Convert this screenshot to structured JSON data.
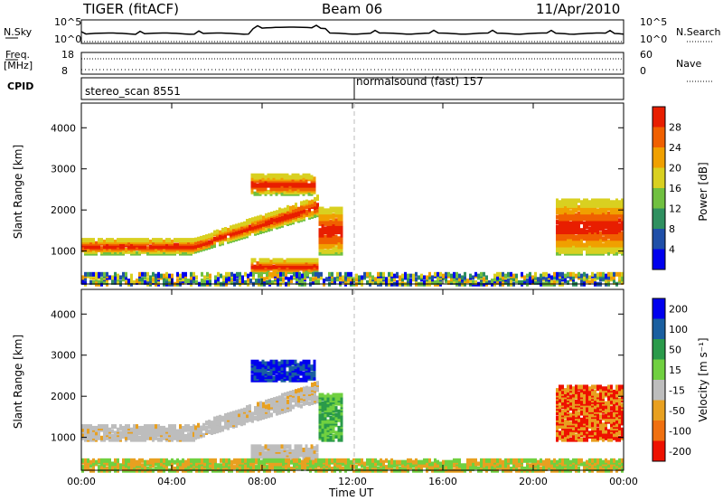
{
  "header": {
    "radar": "TIGER (fitACF)",
    "beam": "Beam 06",
    "date": "11/Apr/2010"
  },
  "top_panels": {
    "nsky_label": "N.Sky",
    "nsearch_label": "N.Search",
    "nsky_ticks": [
      "10^5",
      "10^0"
    ],
    "freq_label_1": "Freq.",
    "freq_label_2": "[MHz]",
    "freq_ticks": [
      "18",
      "8"
    ],
    "nave_ticks": [
      "60",
      "0"
    ],
    "nave_label": "Nave",
    "cpid_label": "CPID",
    "cpid_1": "stereo_scan 8551",
    "cpid_2": "normalsound (fast) 157"
  },
  "colors": {
    "power": [
      "#0000ee",
      "#1f4fa8",
      "#2f9060",
      "#70c040",
      "#d9d020",
      "#f0a000",
      "#f06000",
      "#e81e00"
    ],
    "velocity": [
      "#0000ee",
      "#1a5fa0",
      "#2a9a4a",
      "#70d040",
      "#bdbdbd",
      "#e8a020",
      "#f07010",
      "#ee1100"
    ]
  },
  "chart_data": [
    {
      "type": "heatmap",
      "name": "power",
      "ylabel": "Slant Range [km]",
      "yticks": [
        "1000",
        "2000",
        "3000",
        "4000"
      ],
      "ylim": [
        200,
        4600
      ],
      "colorbar_label": "Power [dB]",
      "colorbar_ticks": [
        "4",
        "8",
        "12",
        "16",
        "20",
        "24",
        "28"
      ],
      "xlim_hours": [
        0,
        24
      ],
      "features": [
        {
          "t0": 0.0,
          "t1": 5.0,
          "r0": 1000,
          "r1": 1350,
          "level": "high"
        },
        {
          "t0": 5.0,
          "t1": 10.5,
          "r0": 1200,
          "r1": 2200,
          "level": "high"
        },
        {
          "t0": 7.5,
          "t1": 10.3,
          "r0": 2450,
          "r1": 2900,
          "level": "high"
        },
        {
          "t0": 7.5,
          "t1": 10.5,
          "r0": 550,
          "r1": 850,
          "level": "high"
        },
        {
          "t0": 10.5,
          "t1": 11.5,
          "r0": 1000,
          "r1": 2100,
          "level": "high"
        },
        {
          "t0": 21.0,
          "t1": 24.0,
          "r0": 1000,
          "r1": 2300,
          "level": "high"
        },
        {
          "t0": 0.0,
          "t1": 24.0,
          "r0": 250,
          "r1": 500,
          "level": "low"
        }
      ]
    },
    {
      "type": "heatmap",
      "name": "velocity",
      "ylabel": "Slant Range [km]",
      "yticks": [
        "1000",
        "2000",
        "3000",
        "4000"
      ],
      "ylim": [
        200,
        4600
      ],
      "xlabel": "Time UT",
      "xticks": [
        "00:00",
        "04:00",
        "08:00",
        "12:00",
        "16:00",
        "20:00",
        "00:00"
      ],
      "colorbar_label": "Velocity [m s⁻¹]",
      "colorbar_ticks": [
        "200",
        "100",
        "50",
        "15",
        "-15",
        "-50",
        "-100",
        "-200"
      ],
      "xlim_hours": [
        0,
        24
      ]
    }
  ]
}
